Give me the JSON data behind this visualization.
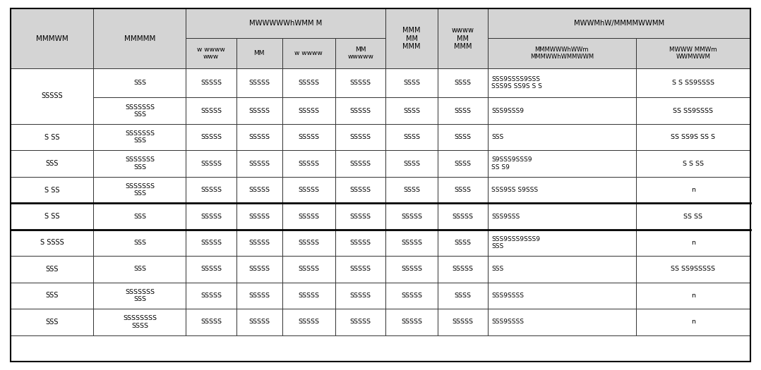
{
  "header_bg": "#d4d4d4",
  "white_bg": "#ffffff",
  "border_color": "#333333",
  "thick_border_color": "#000000",
  "text_color": "#000000",
  "figsize": [
    10.78,
    5.25
  ],
  "dpi": 100,
  "col1_header": "MMMWM",
  "col2_header": "MMMMM",
  "group3_header": "MWWWWWhWMM M",
  "group3_sub": [
    "w wwww\nwww",
    "MM",
    "w wwww",
    "MM\nwwwww"
  ],
  "group4_header": "MMM\nMM\nMMM",
  "group5_header": "wwww\nMM\nMMM",
  "group6_header": "MWWMhW/MMMMWWMM",
  "group6_sub1": "MMMWWWhWWm\nMMMWWhWMMWWM",
  "group6_sub2": "MWWW MMWm\nWWMWWM",
  "rows": [
    {
      "col1": "SSSSS",
      "col1_span": 2,
      "col2": "SSS",
      "col3a": "SSSSS",
      "col3b": "SSSSS",
      "col3c": "SSSSS",
      "col3d": "SSSSS",
      "col4": "SSSS",
      "col5": "SSSS",
      "col6": "SSS9SSSS9SSS\nSSS9S SS9S S S",
      "col7": "S S SS9SSSS"
    },
    {
      "col1": "",
      "col1_span": 0,
      "col2": "SSSSSSS\nSSS",
      "col3a": "SSSSS",
      "col3b": "SSSSS",
      "col3c": "SSSSS",
      "col3d": "SSSSS",
      "col4": "SSSS",
      "col5": "SSSS",
      "col6": "SSS9SSS9",
      "col7": "SS SS9SSSS"
    },
    {
      "col1": "S SS",
      "col1_span": 1,
      "col2": "SSSSSSS\nSSS",
      "col3a": "SSSSS",
      "col3b": "SSSSS",
      "col3c": "SSSSS",
      "col3d": "SSSSS",
      "col4": "SSSS",
      "col5": "SSSS",
      "col6": "SSS",
      "col7": "SS SS9S SS S"
    },
    {
      "col1": "SSS",
      "col1_span": 1,
      "col2": "SSSSSSS\nSSS",
      "col3a": "SSSSS",
      "col3b": "SSSSS",
      "col3c": "SSSSS",
      "col3d": "SSSSS",
      "col4": "SSSS",
      "col5": "SSSS",
      "col6": "S9SSS9SSS9\nSS S9",
      "col7": "S S SS"
    },
    {
      "col1": "S SS",
      "col1_span": 1,
      "col2": "SSSSSSS\nSSS",
      "col3a": "SSSSS",
      "col3b": "SSSSS",
      "col3c": "SSSSS",
      "col3d": "SSSSS",
      "col4": "SSSS",
      "col5": "SSSS",
      "col6": "SSS9SS S9SSS",
      "col7": "n"
    },
    {
      "col1": "S SS",
      "col1_span": 1,
      "col2": "SSS",
      "col3a": "SSSSS",
      "col3b": "SSSSS",
      "col3c": "SSSSS",
      "col3d": "SSSSS",
      "col4": "SSSSS",
      "col5": "SSSSS",
      "col6": "SSS9SSS",
      "col7": "SS SS"
    },
    {
      "col1": "S SSSS",
      "col1_span": 1,
      "col2": "SSS",
      "col3a": "SSSSS",
      "col3b": "SSSSS",
      "col3c": "SSSSS",
      "col3d": "SSSSS",
      "col4": "SSSSS",
      "col5": "SSSS",
      "col6": "SSS9SSS9SSS9\nSSS",
      "col7": "n"
    },
    {
      "col1": "SSS",
      "col1_span": 1,
      "col2": "SSS",
      "col3a": "SSSSS",
      "col3b": "SSSSS",
      "col3c": "SSSSS",
      "col3d": "SSSSS",
      "col4": "SSSSS",
      "col5": "SSSSS",
      "col6": "SSS",
      "col7": "SS SS9SSSSS"
    },
    {
      "col1": "SSS",
      "col1_span": 1,
      "col2": "SSSSSSS\nSSS",
      "col3a": "SSSSS",
      "col3b": "SSSSS",
      "col3c": "SSSSS",
      "col3d": "SSSSS",
      "col4": "SSSSS",
      "col5": "SSSS",
      "col6": "SSS9SSSS",
      "col7": "n"
    },
    {
      "col1": "SSS",
      "col1_span": 1,
      "col2": "SSSSSSSS\nSSSS",
      "col3a": "SSSSS",
      "col3b": "SSSSS",
      "col3c": "SSSSS",
      "col3d": "SSSSS",
      "col4": "SSSSS",
      "col5": "SSSSS",
      "col6": "SSS9SSSS",
      "col7": "n"
    }
  ],
  "thick_row_after": [
    4,
    5
  ]
}
